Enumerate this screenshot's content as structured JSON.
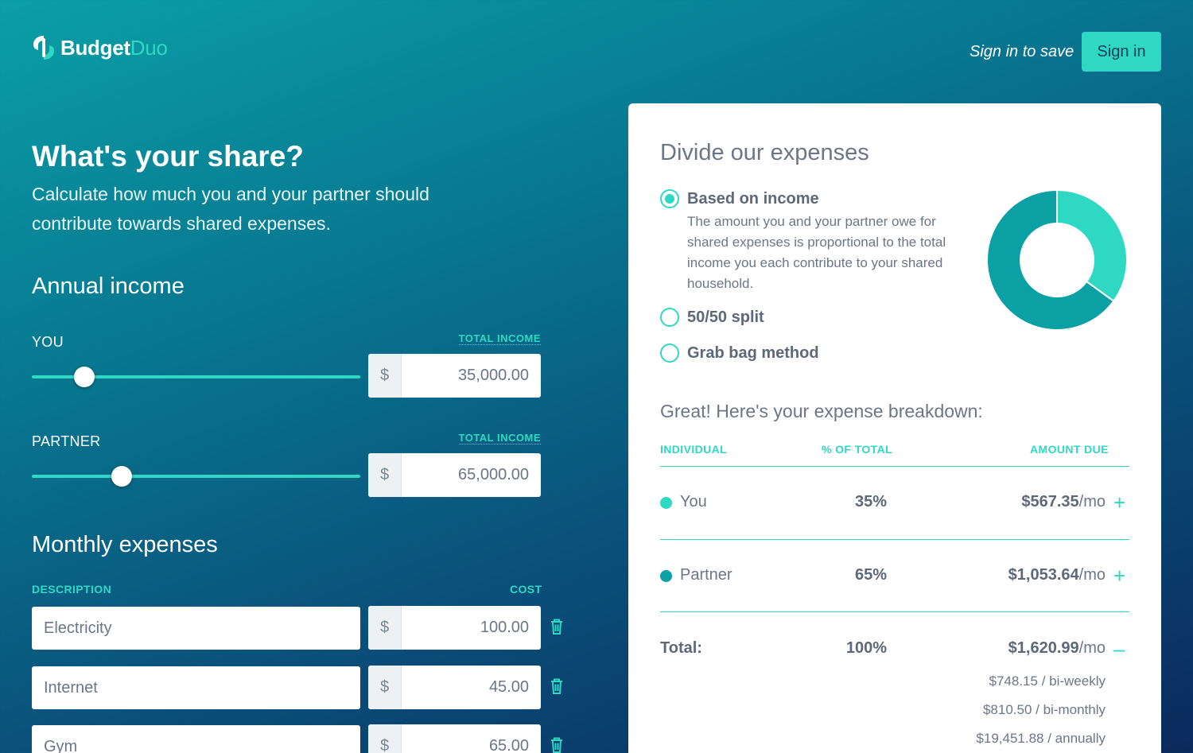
{
  "header": {
    "logo_budget": "Budget",
    "logo_duo": "Duo",
    "signin_hint": "Sign in to save",
    "signin_button": "Sign in"
  },
  "hero": {
    "title": "What's your share?",
    "subtitle": "Calculate how much you and your partner should contribute towards shared expenses."
  },
  "income": {
    "section_title": "Annual income",
    "you": {
      "label": "YOU",
      "link": "TOTAL INCOME",
      "currency": "$",
      "value": "35,000.00",
      "slider_level": 0.16
    },
    "partner": {
      "label": "PARTNER",
      "link": "TOTAL INCOME",
      "currency": "$",
      "value": "65,000.00",
      "slider_level": 0.274
    }
  },
  "expenses": {
    "section_title": "Monthly expenses",
    "col_description": "DESCRIPTION",
    "col_cost": "COST",
    "items": [
      {
        "description": "Electricity",
        "currency": "$",
        "cost": "100.00"
      },
      {
        "description": "Internet",
        "currency": "$",
        "cost": "45.00"
      },
      {
        "description": "Gym",
        "currency": "$",
        "cost": "65.00"
      }
    ]
  },
  "card": {
    "title": "Divide our expenses",
    "options": [
      {
        "label": "Based on income",
        "checked": true,
        "description": "The amount you and your partner owe for shared expenses is proportional to the total income you each contribute to your shared household."
      },
      {
        "label": "50/50 split",
        "checked": false
      },
      {
        "label": "Grab bag method",
        "checked": false
      }
    ],
    "breakdown_title": "Great! Here's your expense breakdown:",
    "table": {
      "col_individual": "INDIVIDUAL",
      "col_pct": "% OF TOTAL",
      "col_amount": "AMOUNT DUE",
      "rows": [
        {
          "name": "You",
          "pct": "35%",
          "amount": "$567.35",
          "per": "/mo",
          "toggle": "+",
          "color": "#2ed8c3"
        },
        {
          "name": "Partner",
          "pct": "65%",
          "amount": "$1,053.64",
          "per": "/mo",
          "toggle": "+",
          "color": "#0aa0a4"
        }
      ],
      "total": {
        "label": "Total:",
        "pct": "100%",
        "amount": "$1,620.99",
        "per": "/mo",
        "toggle": "–"
      },
      "total_breakdown": [
        "$748.15 / bi-weekly",
        "$810.50 / bi-monthly",
        "$19,451.88 / annually"
      ]
    }
  },
  "chart_data": {
    "type": "pie",
    "categories": [
      "You",
      "Partner"
    ],
    "values": [
      35,
      65
    ],
    "colors": [
      "#2ed8c3",
      "#0aa0a4"
    ],
    "donut": true
  },
  "colors": {
    "accent": "#2ed8c3",
    "accent_dark": "#0aa0a4",
    "text_gray": "#6b7686"
  }
}
